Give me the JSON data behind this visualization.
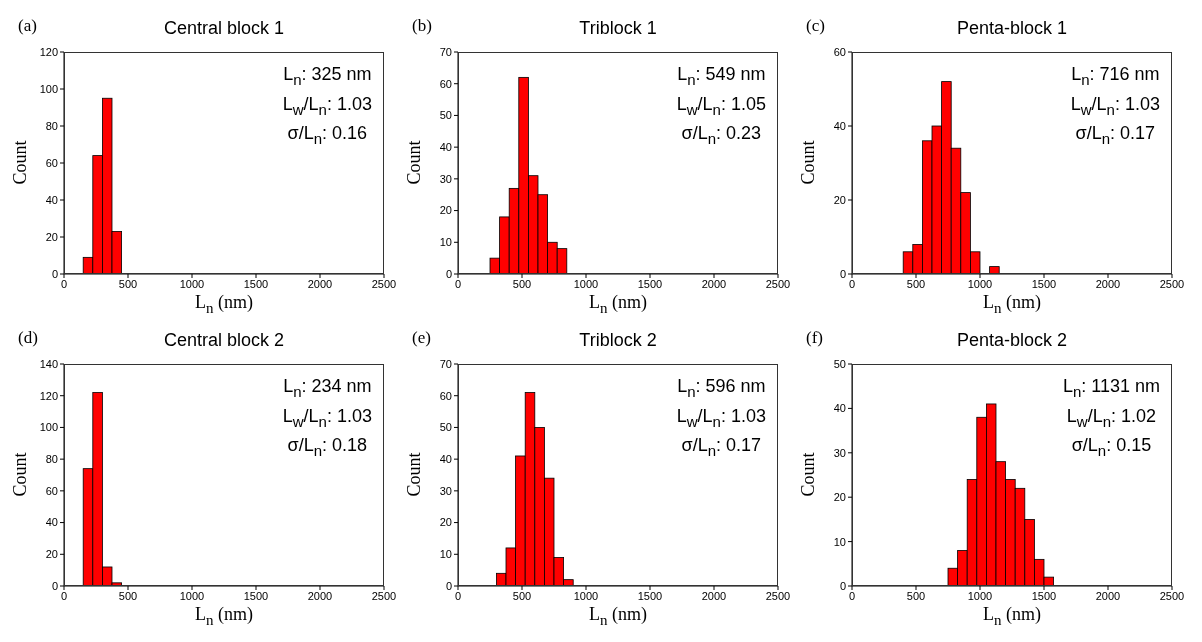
{
  "chart_data": [
    {
      "type": "histogram",
      "title": "Central block 1",
      "xlabel": "L$_{n}$ (nm)",
      "ylabel": "Count",
      "color": "#ff0000",
      "bins": [
        150,
        225,
        300,
        375,
        450
      ],
      "values": [
        9,
        64,
        95,
        23
      ],
      "xlim": [
        0,
        2500
      ],
      "xticks": [
        0,
        500,
        1000,
        1500,
        2000,
        2500
      ],
      "ylim": [
        0,
        120
      ],
      "yticks": [
        0,
        20,
        40,
        60,
        80,
        100,
        120
      ],
      "annotations": [
        "(a)",
        "L$_{n}$: 325 nm",
        "L$_{w}$/L$_{n}$: 1.03",
        "σ/L$_{n}$: 0.16"
      ]
    },
    {
      "type": "histogram",
      "title": "Triblock 1",
      "xlabel": "L$_{n}$ (nm)",
      "ylabel": "Count",
      "color": "#ff0000",
      "bins": [
        250,
        325,
        400,
        475,
        550,
        625,
        700,
        775,
        850
      ],
      "values": [
        5,
        18,
        27,
        62,
        31,
        25,
        10,
        8
      ],
      "xlim": [
        0,
        2500
      ],
      "xticks": [
        0,
        500,
        1000,
        1500,
        2000,
        2500
      ],
      "ylim": [
        0,
        70
      ],
      "yticks": [
        0,
        10,
        20,
        30,
        40,
        50,
        60,
        70
      ],
      "annotations": [
        "(b)",
        "L$_{n}$: 549 nm",
        "L$_{w}$/L$_{n}$: 1.05",
        "σ/L$_{n}$: 0.23"
      ]
    },
    {
      "type": "histogram",
      "title": "Penta-block 1",
      "xlabel": "L$_{n}$ (nm)",
      "ylabel": "Count",
      "color": "#ff0000",
      "bins": [
        400,
        475,
        550,
        625,
        700,
        775,
        850,
        925,
        1000,
        1075,
        1150
      ],
      "values": [
        6,
        8,
        36,
        40,
        52,
        34,
        22,
        6,
        0,
        2
      ],
      "xlim": [
        0,
        2500
      ],
      "xticks": [
        0,
        500,
        1000,
        1500,
        2000,
        2500
      ],
      "ylim": [
        0,
        60
      ],
      "yticks": [
        0,
        20,
        40,
        60
      ],
      "annotations": [
        "(c)",
        "L$_{n}$: 716 nm",
        "L$_{w}$/L$_{n}$: 1.03",
        "σ/L$_{n}$: 0.17"
      ]
    },
    {
      "type": "histogram",
      "title": "Central block 2",
      "xlabel": "L$_{n}$ (nm)",
      "ylabel": "Count",
      "color": "#ff0000",
      "bins": [
        150,
        225,
        300,
        375,
        450
      ],
      "values": [
        74,
        122,
        12,
        2
      ],
      "xlim": [
        0,
        2500
      ],
      "xticks": [
        0,
        500,
        1000,
        1500,
        2000,
        2500
      ],
      "ylim": [
        0,
        140
      ],
      "yticks": [
        0,
        20,
        40,
        60,
        80,
        100,
        120,
        140
      ],
      "annotations": [
        "(d)",
        "L$_{n}$: 234 nm",
        "L$_{w}$/L$_{n}$: 1.03",
        "σ/L$_{n}$: 0.18"
      ]
    },
    {
      "type": "histogram",
      "title": "Triblock 2",
      "xlabel": "L$_{n}$ (nm)",
      "ylabel": "Count",
      "color": "#ff0000",
      "bins": [
        300,
        375,
        450,
        525,
        600,
        675,
        750,
        825,
        900
      ],
      "values": [
        4,
        12,
        41,
        61,
        50,
        34,
        9,
        2
      ],
      "xlim": [
        0,
        2500
      ],
      "xticks": [
        0,
        500,
        1000,
        1500,
        2000,
        2500
      ],
      "ylim": [
        0,
        70
      ],
      "yticks": [
        0,
        10,
        20,
        30,
        40,
        50,
        60,
        70
      ],
      "annotations": [
        "(e)",
        "L$_{n}$: 596 nm",
        "L$_{w}$/L$_{n}$: 1.03",
        "σ/L$_{n}$: 0.17"
      ]
    },
    {
      "type": "histogram",
      "title": "Penta-block 2",
      "xlabel": "L$_{n}$ (nm)",
      "ylabel": "Count",
      "color": "#ff0000",
      "bins": [
        750,
        825,
        900,
        975,
        1050,
        1125,
        1200,
        1275,
        1350,
        1425,
        1500,
        1575
      ],
      "values": [
        4,
        8,
        24,
        38,
        41,
        28,
        24,
        22,
        15,
        6,
        2
      ],
      "xlim": [
        0,
        2500
      ],
      "xticks": [
        0,
        500,
        1000,
        1500,
        2000,
        2500
      ],
      "ylim": [
        0,
        50
      ],
      "yticks": [
        0,
        10,
        20,
        30,
        40,
        50
      ],
      "annotations": [
        "(f)",
        "L$_{n}$: 1131 nm",
        "L$_{w}$/L$_{n}$: 1.02",
        "σ/L$_{n}$: 0.15"
      ]
    }
  ]
}
